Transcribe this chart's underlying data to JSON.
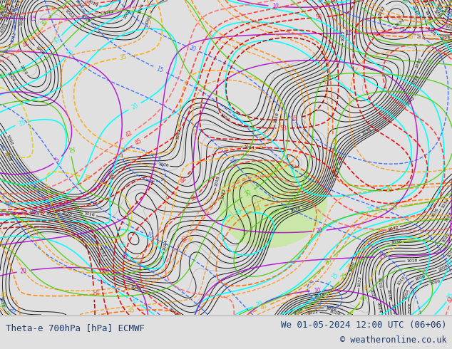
{
  "title_left": "Theta-e 700hPa [hPa] ECMWF",
  "title_right": "We 01-05-2024 12:00 UTC (06+06)",
  "copyright": "© weatheronline.co.uk",
  "footer_bg": "#e0e0e0",
  "footer_line_color": "#aaaaaa",
  "text_color": "#1a3a6b",
  "map_bg": "#b8b8b8",
  "green_light": "#c8e8a0",
  "green_mid": "#b8e090",
  "fig_width": 6.34,
  "fig_height": 4.9,
  "dpi": 100
}
